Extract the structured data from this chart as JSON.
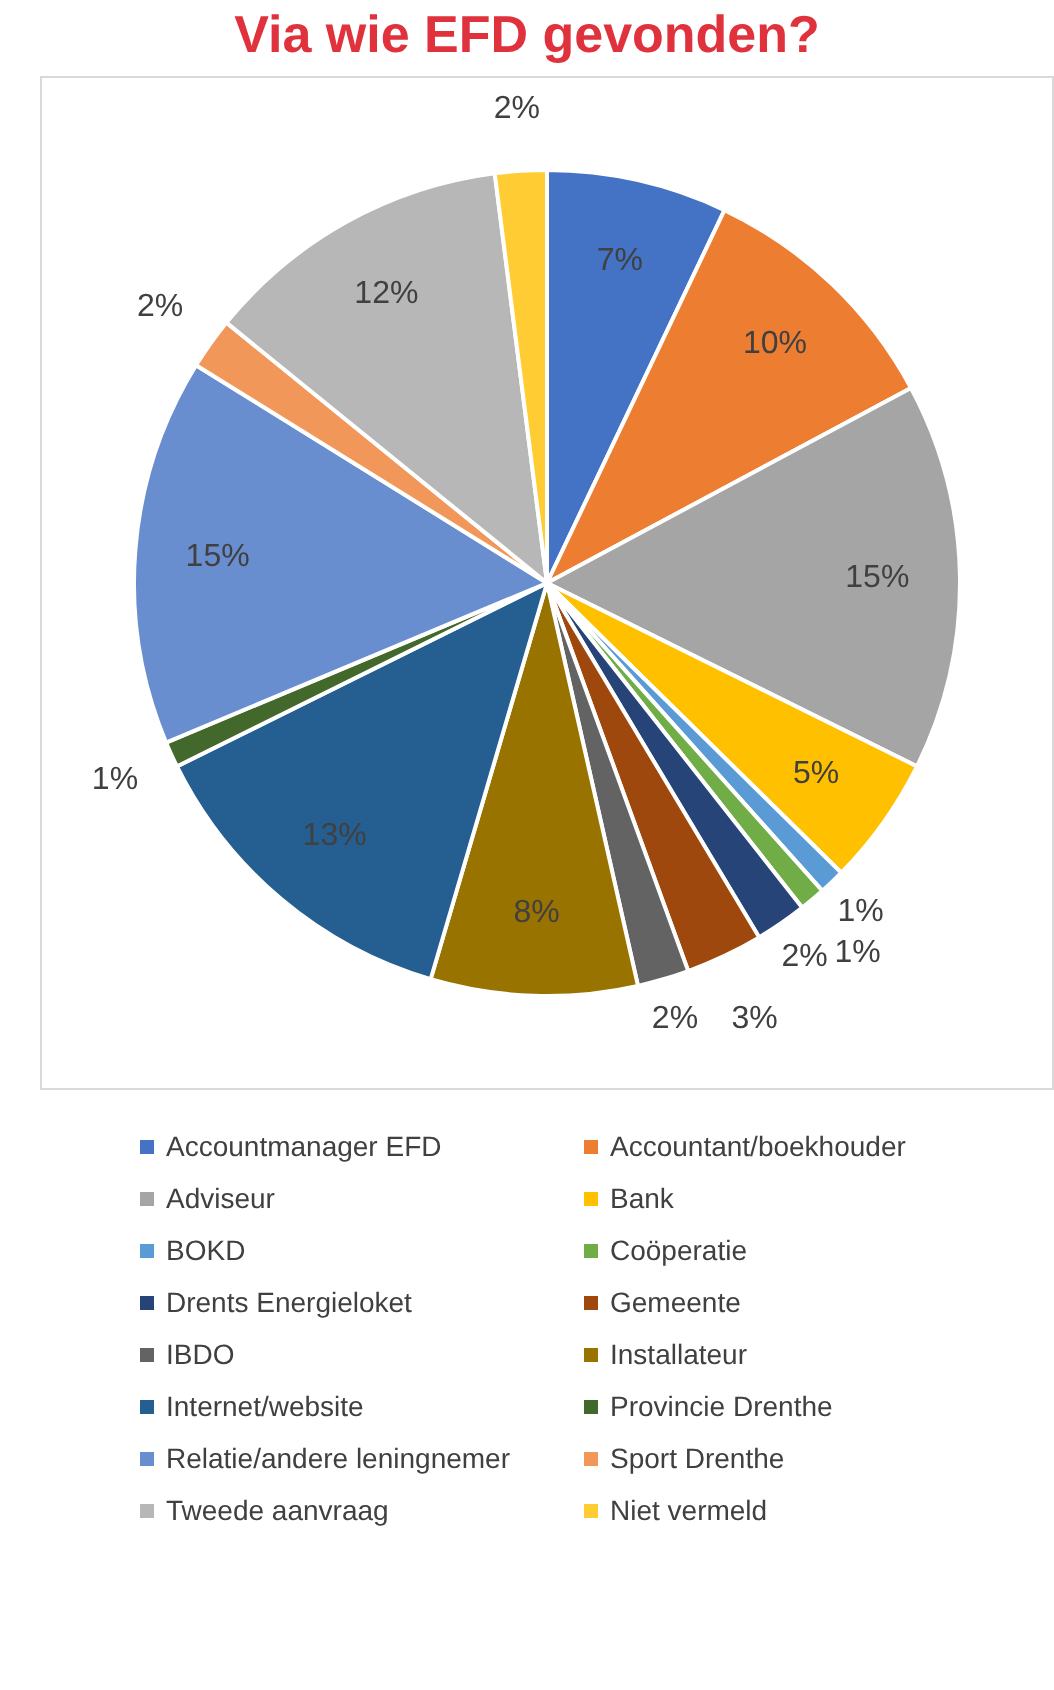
{
  "chart_data": {
    "type": "pie",
    "title": "Via wie EFD gevonden?",
    "categories": [
      "Accountmanager EFD",
      "Accountant/boekhouder",
      "Adviseur",
      "Bank",
      "BOKD",
      "Coöperatie",
      "Drents Energieloket",
      "Gemeente",
      "IBDO",
      "Installateur",
      "Internet/website",
      "Provincie Drenthe",
      "Relatie/andere leningnemer",
      "Sport Drenthe",
      "Tweede aanvraag",
      "Niet vermeld"
    ],
    "values": [
      7,
      10,
      15,
      5,
      1,
      1,
      2,
      3,
      2,
      8,
      13,
      1,
      15,
      2,
      12,
      2
    ],
    "value_labels": [
      "7%",
      "10%",
      "15%",
      "5%",
      "1%",
      "1%",
      "2%",
      "3%",
      "2%",
      "8%",
      "13%",
      "1%",
      "15%",
      "2%",
      "12%",
      "2%"
    ],
    "colors": [
      "#4472c4",
      "#ed7d31",
      "#a5a5a5",
      "#ffc000",
      "#5b9bd5",
      "#70ad47",
      "#264478",
      "#9e480e",
      "#636363",
      "#997300",
      "#255e91",
      "#43682b",
      "#698ed0",
      "#f1975a",
      "#b7b7b7",
      "#ffcd33"
    ],
    "legend": "bottom"
  }
}
